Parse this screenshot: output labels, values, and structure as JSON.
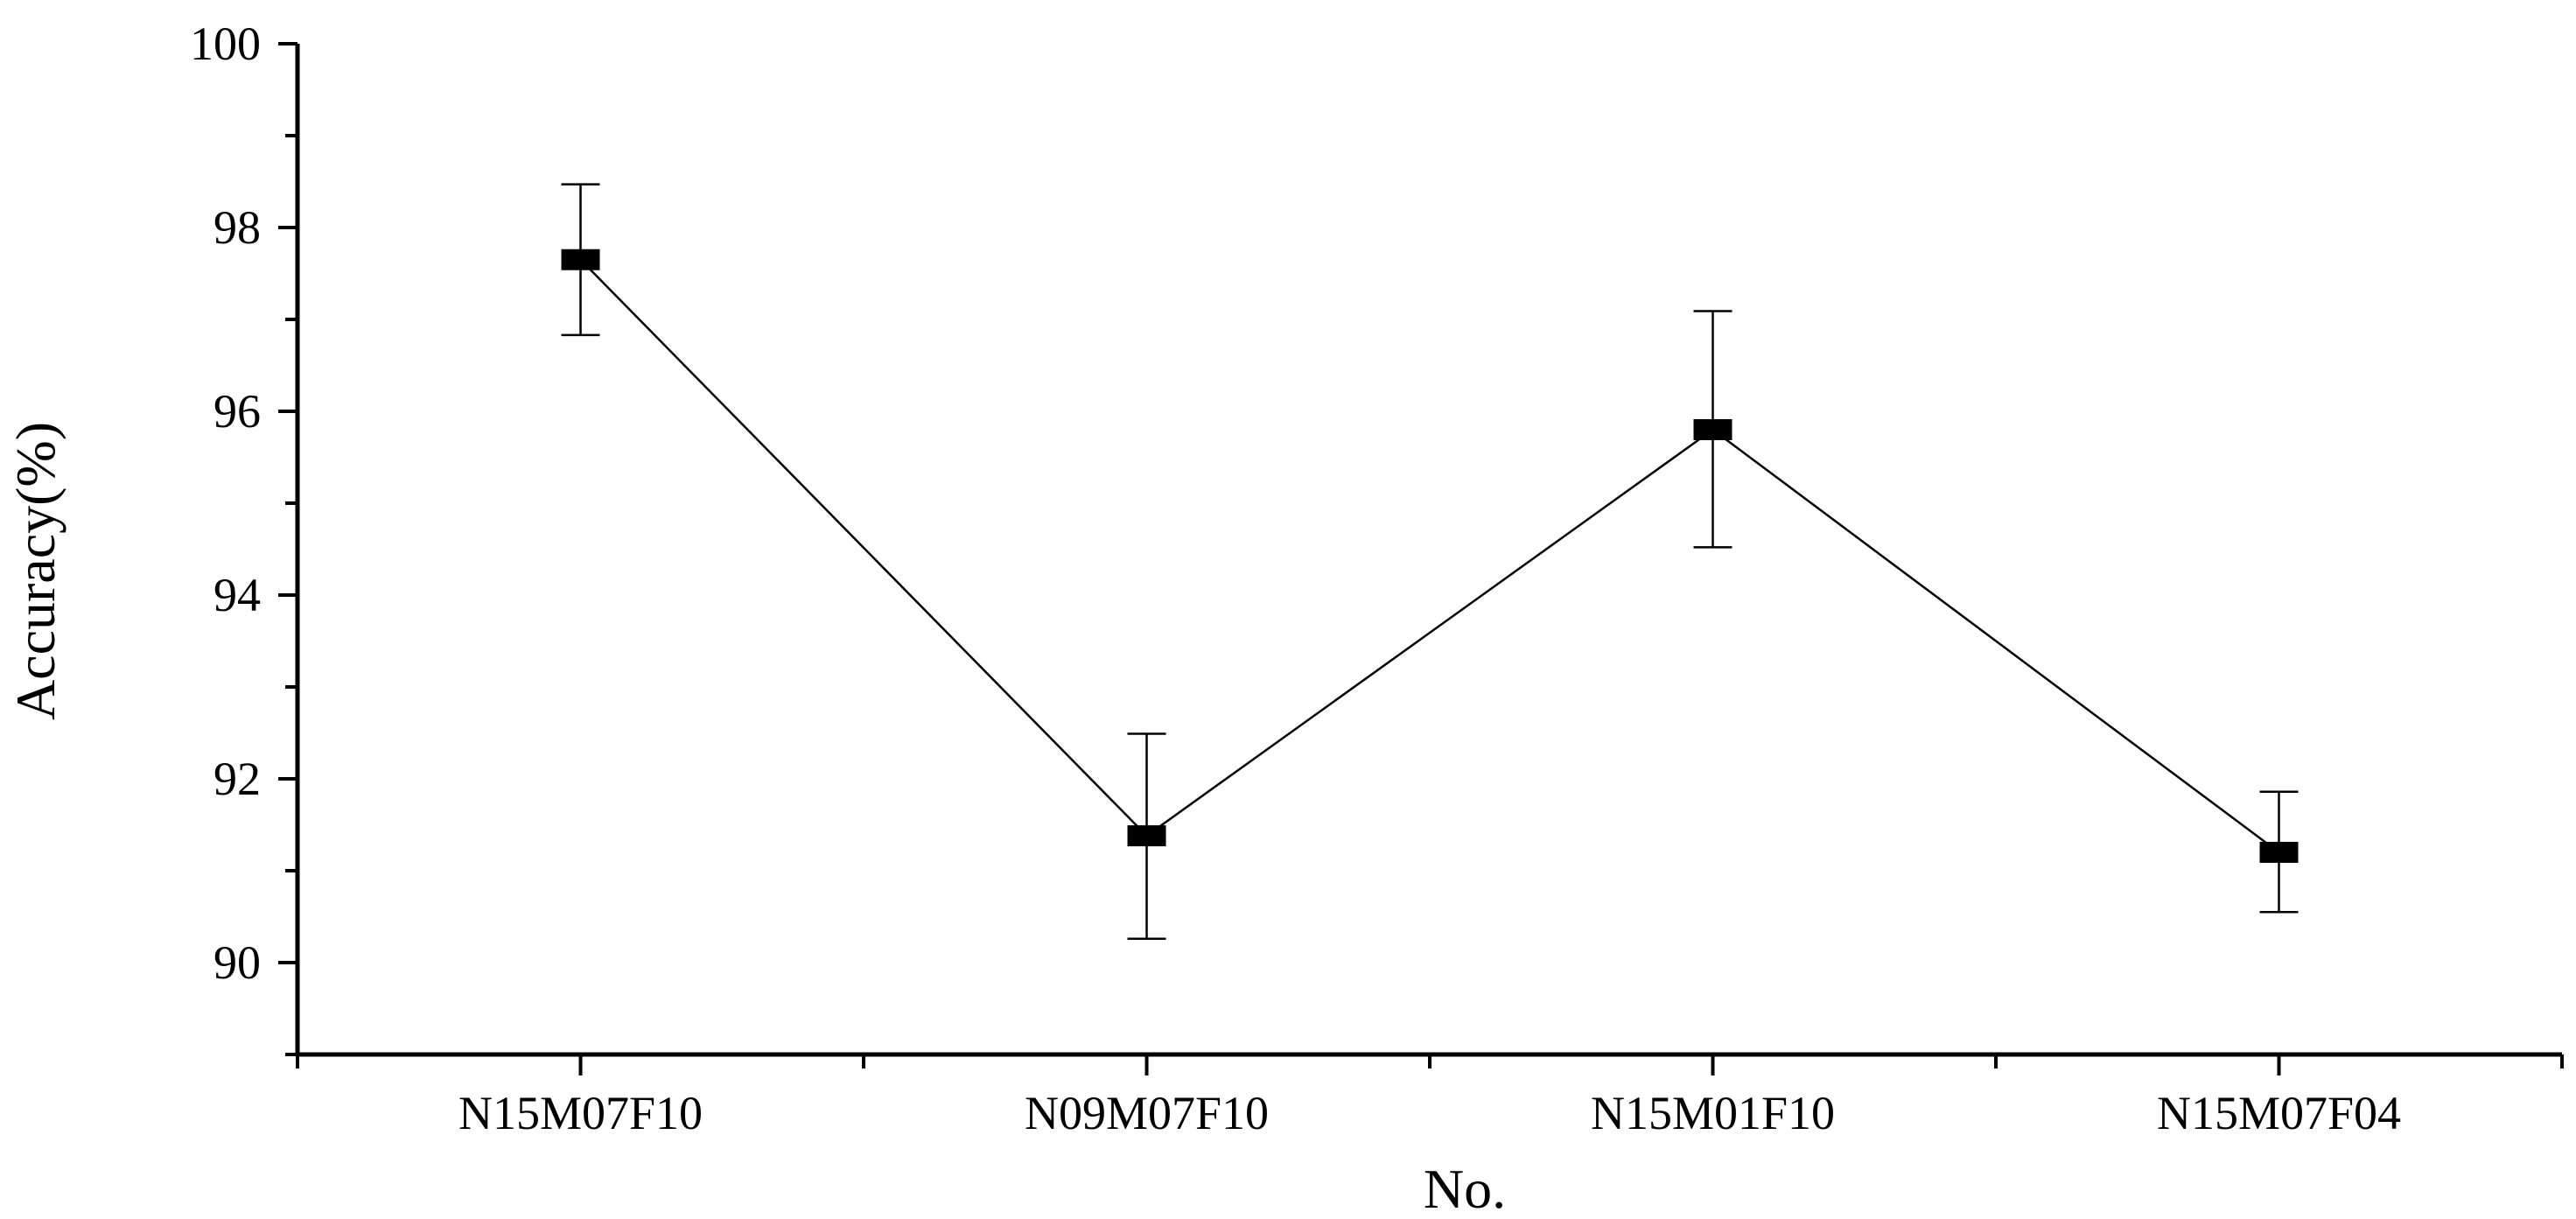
{
  "chart_data": {
    "type": "line",
    "xlabel": "No.",
    "ylabel": "Accuracy(%)",
    "categories": [
      "N15M07F10",
      "N09M07F10",
      "N15M01F10",
      "N15M07F04"
    ],
    "series": [
      {
        "values": [
          97.65,
          91.38,
          95.8,
          91.2
        ],
        "error_low": [
          96.83,
          90.26,
          94.52,
          90.55
        ],
        "error_high": [
          98.47,
          92.49,
          97.09,
          91.86
        ]
      }
    ],
    "ylim": [
      89,
      100
    ],
    "yticks": [
      90,
      92,
      94,
      96,
      98,
      100
    ],
    "grid": false,
    "legend": "none",
    "marker": "square",
    "color": "#000000"
  }
}
